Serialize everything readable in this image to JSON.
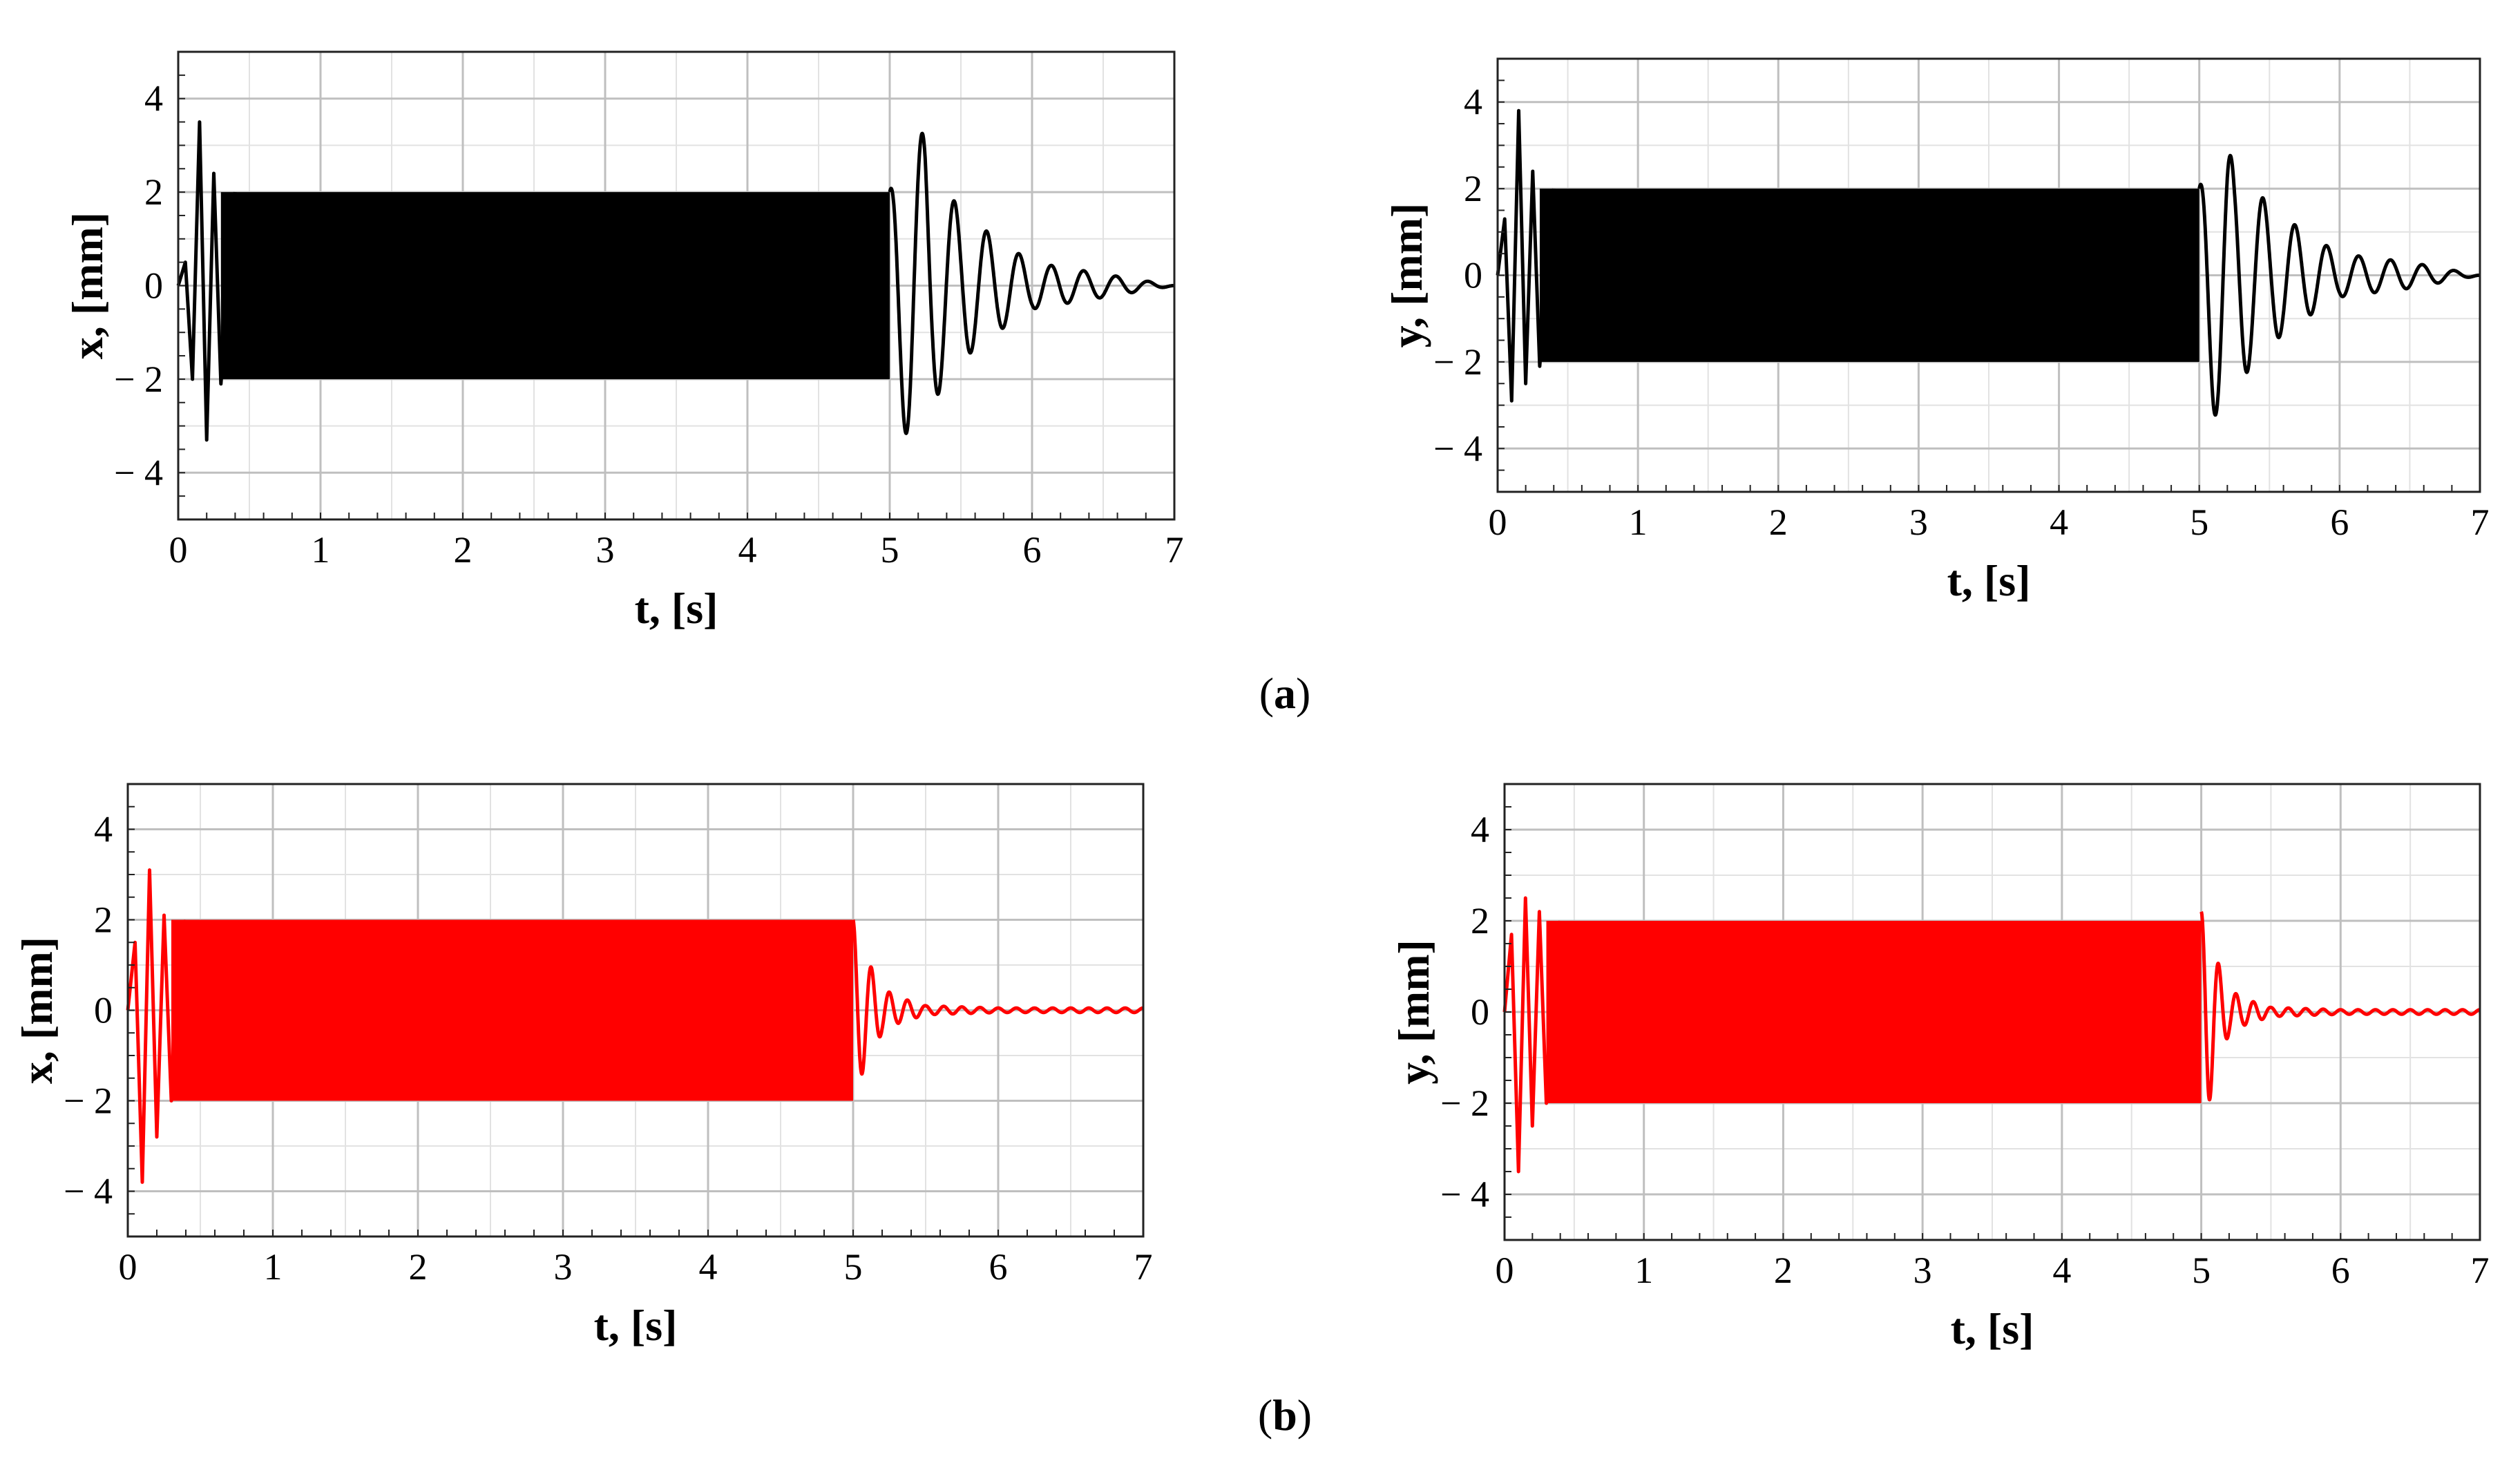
{
  "chart_data": [
    {
      "type": "line",
      "panel": "a",
      "position": "left",
      "xlabel": "t, [s]",
      "ylabel": "x,  [mm]",
      "xlim": [
        0,
        7
      ],
      "ylim": [
        -5,
        5
      ],
      "xticks": [
        "0",
        "1",
        "2",
        "3",
        "4",
        "5",
        "6",
        "7"
      ],
      "yticks": [
        "4",
        "2",
        "0",
        "-2",
        "-4"
      ],
      "grid": true,
      "color": "#000000",
      "series": [
        {
          "t": [
            0,
            0.05,
            0.1,
            0.15,
            0.2,
            0.25,
            0.3,
            0.4,
            0.5,
            1.0,
            2.0,
            3.0,
            4.0,
            5.0,
            5.05,
            5.1,
            5.15,
            5.2,
            5.25,
            5.3,
            5.5,
            5.75,
            6.0,
            6.5,
            7.0
          ],
          "x_envelope": [
            0,
            0.5,
            -2,
            3.5,
            -3.3,
            2.4,
            -2.1,
            2.0,
            2.0,
            2.0,
            2.0,
            2.0,
            2.0,
            2.0,
            -2.8,
            3.1,
            -3.3,
            3.2,
            -3.3,
            2.5,
            1.6,
            1.0,
            0.5,
            0.25,
            0.0
          ]
        }
      ],
      "steady_amplitude": 2.0,
      "excitation_end": 5.0
    },
    {
      "type": "line",
      "panel": "a",
      "position": "right",
      "xlabel": "t, [s]",
      "ylabel": "y,  [mm]",
      "xlim": [
        0,
        7
      ],
      "ylim": [
        -5,
        5
      ],
      "xticks": [
        "0",
        "1",
        "2",
        "3",
        "4",
        "5",
        "6",
        "7"
      ],
      "yticks": [
        "4",
        "2",
        "0",
        "-2",
        "-4"
      ],
      "grid": true,
      "color": "#000000",
      "series": [
        {
          "t": [
            0,
            0.05,
            0.1,
            0.15,
            0.2,
            0.25,
            0.3,
            0.4,
            0.5,
            1.0,
            2.0,
            3.0,
            4.0,
            5.0,
            5.05,
            5.1,
            5.15,
            5.2,
            5.25,
            5.3,
            5.5,
            5.75,
            6.0,
            6.5,
            7.0
          ],
          "y_envelope": [
            0,
            1.3,
            -2.9,
            3.8,
            -2.5,
            2.4,
            -2.1,
            2.0,
            2.0,
            2.0,
            2.0,
            2.0,
            2.0,
            2.0,
            -2.9,
            3.2,
            -3.3,
            3.1,
            -2.4,
            2.4,
            1.6,
            1.0,
            0.5,
            0.3,
            0.0
          ]
        }
      ],
      "steady_amplitude": 2.0,
      "excitation_end": 5.0
    },
    {
      "type": "line",
      "panel": "b",
      "position": "left",
      "xlabel": "t, [s]",
      "ylabel": "x,  [mm]",
      "xlim": [
        0,
        7
      ],
      "ylim": [
        -5,
        5
      ],
      "xticks": [
        "0",
        "1",
        "2",
        "3",
        "4",
        "5",
        "6",
        "7"
      ],
      "yticks": [
        "4",
        "2",
        "0",
        "-2",
        "-4"
      ],
      "grid": true,
      "color": "#ff0000",
      "series": [
        {
          "t": [
            0,
            0.05,
            0.1,
            0.15,
            0.2,
            0.25,
            0.3,
            0.4,
            1.0,
            2.0,
            3.0,
            4.0,
            5.0,
            5.05,
            5.1,
            5.15,
            5.2,
            5.3,
            5.5,
            6.0,
            7.0
          ],
          "x_envelope": [
            0,
            1.5,
            -3.8,
            3.1,
            -2.8,
            2.1,
            -2.0,
            2.0,
            2.0,
            2.0,
            2.0,
            2.0,
            2.0,
            -1.5,
            1.1,
            -0.8,
            0.5,
            0.3,
            0.1,
            0.05,
            0.05
          ]
        }
      ],
      "steady_amplitude": 2.0,
      "excitation_end": 5.0
    },
    {
      "type": "line",
      "panel": "b",
      "position": "right",
      "xlabel": "t, [s]",
      "ylabel": "y,  [mm]",
      "xlim": [
        0,
        7
      ],
      "ylim": [
        -5,
        5
      ],
      "xticks": [
        "0",
        "1",
        "2",
        "3",
        "4",
        "5",
        "6",
        "7"
      ],
      "yticks": [
        "4",
        "2",
        "0",
        "-2",
        "-4"
      ],
      "grid": true,
      "color": "#ff0000",
      "series": [
        {
          "t": [
            0,
            0.05,
            0.1,
            0.15,
            0.2,
            0.25,
            0.3,
            0.4,
            1.0,
            2.0,
            3.0,
            4.0,
            5.0,
            5.05,
            5.1,
            5.15,
            5.2,
            5.3,
            5.5,
            6.0,
            7.0
          ],
          "y_envelope": [
            0,
            1.7,
            -3.5,
            2.5,
            -2.5,
            2.2,
            -2.0,
            2.0,
            2.0,
            2.0,
            2.0,
            2.0,
            2.2,
            -2.1,
            1.3,
            -0.8,
            0.5,
            0.3,
            0.1,
            0.05,
            0.05
          ]
        }
      ],
      "steady_amplitude": 2.0,
      "excitation_end": 5.0
    }
  ],
  "panel_labels": [
    {
      "open": "(",
      "letter": "a",
      "close": ")"
    },
    {
      "open": "(",
      "letter": "b",
      "close": ")"
    }
  ]
}
